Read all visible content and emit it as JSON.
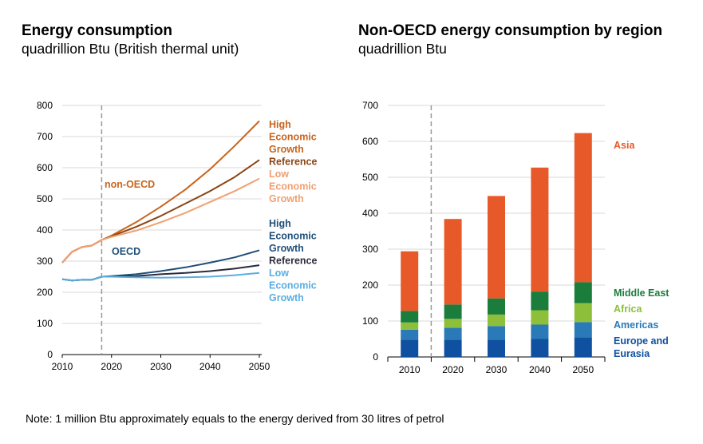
{
  "left_chart": {
    "title": "Energy consumption",
    "subtitle": "quadrillion Btu (British thermal unit)"
  },
  "right_chart": {
    "title": "Non-OECD energy consumption by region",
    "subtitle": "quadrillion Btu"
  },
  "note": "Note: 1 million Btu approximately equals to the energy derived from 30 litres of petrol",
  "colors": {
    "nonoecd_high": "#c8641c",
    "nonoecd_ref": "#8b4513",
    "nonoecd_low": "#f0a070",
    "oecd_high": "#1f4e79",
    "oecd_ref": "#2b2b3d",
    "oecd_low": "#5aaee0",
    "asia": "#e8592a",
    "middle_east": "#1a7d3c",
    "africa": "#8dbf3a",
    "americas": "#2a7ab8",
    "europe_eurasia": "#1050a0",
    "grid": "#d9d9d9",
    "divider": "#999999"
  },
  "chart_data": [
    {
      "type": "line",
      "x_ticks": [
        2010,
        2020,
        2030,
        2040,
        2050
      ],
      "y_ticks": [
        0,
        100,
        200,
        300,
        400,
        500,
        600,
        700,
        800
      ],
      "xlim": [
        2010,
        2050
      ],
      "ylim": [
        0,
        800
      ],
      "grid": "horizontal",
      "divider_x": 2018,
      "group_labels": {
        "non_oecd": "non-OECD",
        "oecd": "OECD"
      },
      "series": [
        {
          "name": "High Economic Growth",
          "group": "non-OECD",
          "color_key": "nonoecd_high",
          "x": [
            2010,
            2012,
            2014,
            2016,
            2018,
            2020,
            2025,
            2030,
            2035,
            2040,
            2045,
            2050
          ],
          "y": [
            295,
            330,
            345,
            350,
            368,
            382,
            425,
            475,
            530,
            595,
            670,
            750
          ]
        },
        {
          "name": "Reference",
          "group": "non-OECD",
          "color_key": "nonoecd_ref",
          "x": [
            2010,
            2012,
            2014,
            2016,
            2018,
            2020,
            2025,
            2030,
            2035,
            2040,
            2045,
            2050
          ],
          "y": [
            295,
            330,
            345,
            350,
            368,
            380,
            410,
            445,
            485,
            525,
            570,
            625
          ]
        },
        {
          "name": "Low Economic Growth",
          "group": "non-OECD",
          "color_key": "nonoecd_low",
          "x": [
            2010,
            2012,
            2014,
            2016,
            2018,
            2020,
            2025,
            2030,
            2035,
            2040,
            2045,
            2050
          ],
          "y": [
            295,
            330,
            345,
            350,
            368,
            378,
            398,
            425,
            455,
            490,
            525,
            565
          ]
        },
        {
          "name": "High Economic Growth",
          "group": "OECD",
          "color_key": "oecd_high",
          "x": [
            2010,
            2012,
            2014,
            2016,
            2018,
            2020,
            2025,
            2030,
            2035,
            2040,
            2045,
            2050
          ],
          "y": [
            242,
            238,
            240,
            240,
            250,
            252,
            258,
            268,
            280,
            295,
            312,
            335
          ]
        },
        {
          "name": "Reference",
          "group": "OECD",
          "color_key": "oecd_ref",
          "x": [
            2010,
            2012,
            2014,
            2016,
            2018,
            2020,
            2025,
            2030,
            2035,
            2040,
            2045,
            2050
          ],
          "y": [
            242,
            238,
            240,
            240,
            250,
            250,
            252,
            258,
            262,
            268,
            276,
            287
          ]
        },
        {
          "name": "Low Economic Growth",
          "group": "OECD",
          "color_key": "oecd_low",
          "x": [
            2010,
            2012,
            2014,
            2016,
            2018,
            2020,
            2025,
            2030,
            2035,
            2040,
            2045,
            2050
          ],
          "y": [
            242,
            238,
            240,
            240,
            250,
            250,
            248,
            247,
            248,
            250,
            255,
            262
          ]
        }
      ],
      "series_labels": {
        "non_oecd": [
          "High",
          "Economic",
          "Growth",
          "Reference",
          "Low",
          "Economic",
          "Growth"
        ],
        "oecd": [
          "High",
          "Economic",
          "Growth",
          "Reference",
          "Low",
          "Economic",
          "Growth"
        ]
      }
    },
    {
      "type": "bar",
      "stacked": true,
      "categories": [
        "2010",
        "2020",
        "2030",
        "2040",
        "2050"
      ],
      "y_ticks": [
        0,
        100,
        200,
        300,
        400,
        500,
        600,
        700
      ],
      "ylim": [
        0,
        700
      ],
      "grid": "horizontal",
      "series": [
        {
          "name": "Europe and Eurasia",
          "color_key": "europe_eurasia",
          "values": [
            48,
            48,
            48,
            50,
            55
          ]
        },
        {
          "name": "Americas",
          "color_key": "americas",
          "values": [
            28,
            33,
            38,
            40,
            42
          ]
        },
        {
          "name": "Africa",
          "color_key": "africa",
          "values": [
            20,
            25,
            32,
            40,
            53
          ]
        },
        {
          "name": "Middle East",
          "color_key": "middle_east",
          "values": [
            32,
            40,
            45,
            52,
            58
          ]
        },
        {
          "name": "Asia",
          "color_key": "asia",
          "values": [
            166,
            238,
            285,
            345,
            415
          ]
        }
      ],
      "legend_labels": {
        "asia": [
          "Asia"
        ],
        "middle_east": [
          "Middle East"
        ],
        "africa": [
          "Africa"
        ],
        "americas": [
          "Americas"
        ],
        "europe_eurasia": [
          "Europe and",
          "Eurasia"
        ]
      }
    }
  ]
}
